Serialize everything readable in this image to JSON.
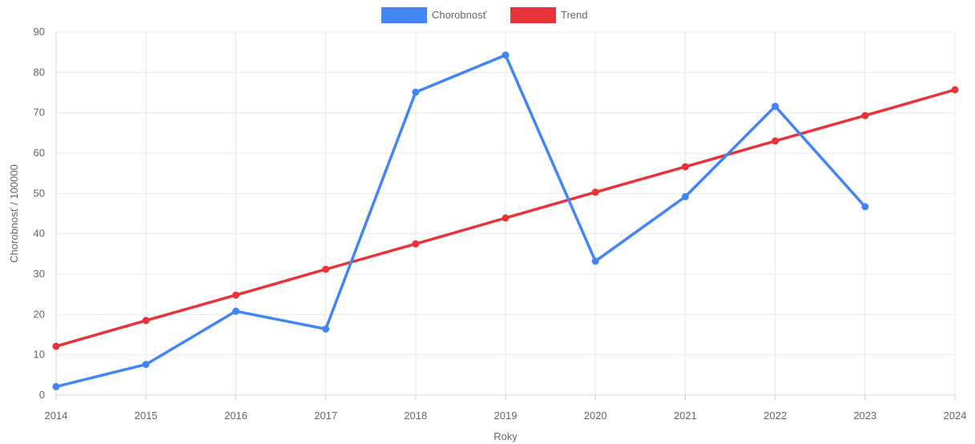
{
  "chart_data": {
    "type": "line",
    "categories": [
      "2014",
      "2015",
      "2016",
      "2017",
      "2018",
      "2019",
      "2020",
      "2021",
      "2022",
      "2023",
      "2024"
    ],
    "xlabel": "Roky",
    "ylabel": "Chorobnosť / 100000",
    "ylim": [
      0,
      90
    ],
    "yticks": [
      0,
      10,
      20,
      30,
      40,
      50,
      60,
      70,
      80,
      90
    ],
    "grid": true,
    "legend_position": "top",
    "series": [
      {
        "name": "Chorobnosť",
        "color": "#4285f4",
        "values": [
          2.1,
          7.6,
          20.8,
          16.4,
          75.1,
          84.3,
          33.2,
          49.2,
          71.6,
          46.7,
          null
        ]
      },
      {
        "name": "Trend",
        "color": "#e8333a",
        "values": [
          12.1,
          18.5,
          24.8,
          31.2,
          37.5,
          43.9,
          50.3,
          56.6,
          63.0,
          69.3,
          75.7
        ]
      }
    ]
  }
}
